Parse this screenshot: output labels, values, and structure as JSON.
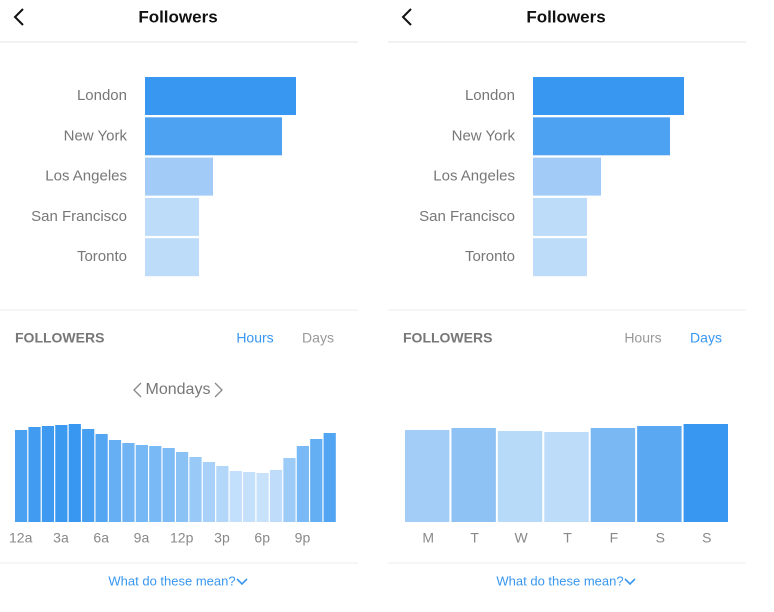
{
  "panels": [
    {
      "header": {
        "title": "Followers"
      },
      "top_locations": {
        "type": "bar",
        "categories": [
          "London",
          "New York",
          "Los Angeles",
          "San Francisco",
          "Toronto"
        ],
        "values": [
          151,
          137,
          68,
          54,
          54
        ],
        "colors": [
          "#3897f0",
          "#4ea2f2",
          "#a2ccf7",
          "#bcdcfa",
          "#bcdcfa"
        ],
        "xlim": [
          0,
          160
        ]
      },
      "followers": {
        "title": "FOLLOWERS",
        "tabs": [
          "Hours",
          "Days"
        ],
        "active_tab": 0,
        "subtitle": "Mondays",
        "chart": {
          "type": "bar",
          "categories": [
            "12a",
            null,
            null,
            "3a",
            null,
            null,
            "6a",
            null,
            null,
            "9a",
            null,
            null,
            "12p",
            null,
            null,
            "3p",
            null,
            null,
            "6p",
            null,
            null,
            "9p",
            null,
            null
          ],
          "values": [
            92,
            95,
            96,
            97,
            98,
            93,
            88,
            82,
            79,
            77,
            76,
            74,
            70,
            65,
            60,
            56,
            51,
            50,
            49,
            52,
            64,
            76,
            83,
            89
          ],
          "color_range": [
            "#c8e2fb",
            "#3897f0"
          ],
          "ylim": [
            0,
            100
          ]
        }
      },
      "footer": {
        "link": "What do these mean?"
      }
    },
    {
      "header": {
        "title": "Followers"
      },
      "top_locations": {
        "type": "bar",
        "categories": [
          "London",
          "New York",
          "Los Angeles",
          "San Francisco",
          "Toronto"
        ],
        "values": [
          151,
          137,
          68,
          54,
          54
        ],
        "colors": [
          "#3897f0",
          "#4ea2f2",
          "#a2ccf7",
          "#bcdcfa",
          "#bcdcfa"
        ],
        "xlim": [
          0,
          160
        ]
      },
      "followers": {
        "title": "FOLLOWERS",
        "tabs": [
          "Hours",
          "Days"
        ],
        "active_tab": 1,
        "chart": {
          "type": "bar",
          "categories": [
            "M",
            "T",
            "W",
            "T",
            "F",
            "S",
            "S"
          ],
          "values": [
            92,
            94,
            91,
            90,
            94,
            96,
            98
          ],
          "colors": [
            "#a3cdf7",
            "#8ec2f5",
            "#b7daf9",
            "#bcdcfa",
            "#7ab8f4",
            "#5aa7f2",
            "#3897f0"
          ],
          "ylim": [
            0,
            100
          ]
        }
      },
      "footer": {
        "link": "What do these mean?"
      }
    }
  ]
}
